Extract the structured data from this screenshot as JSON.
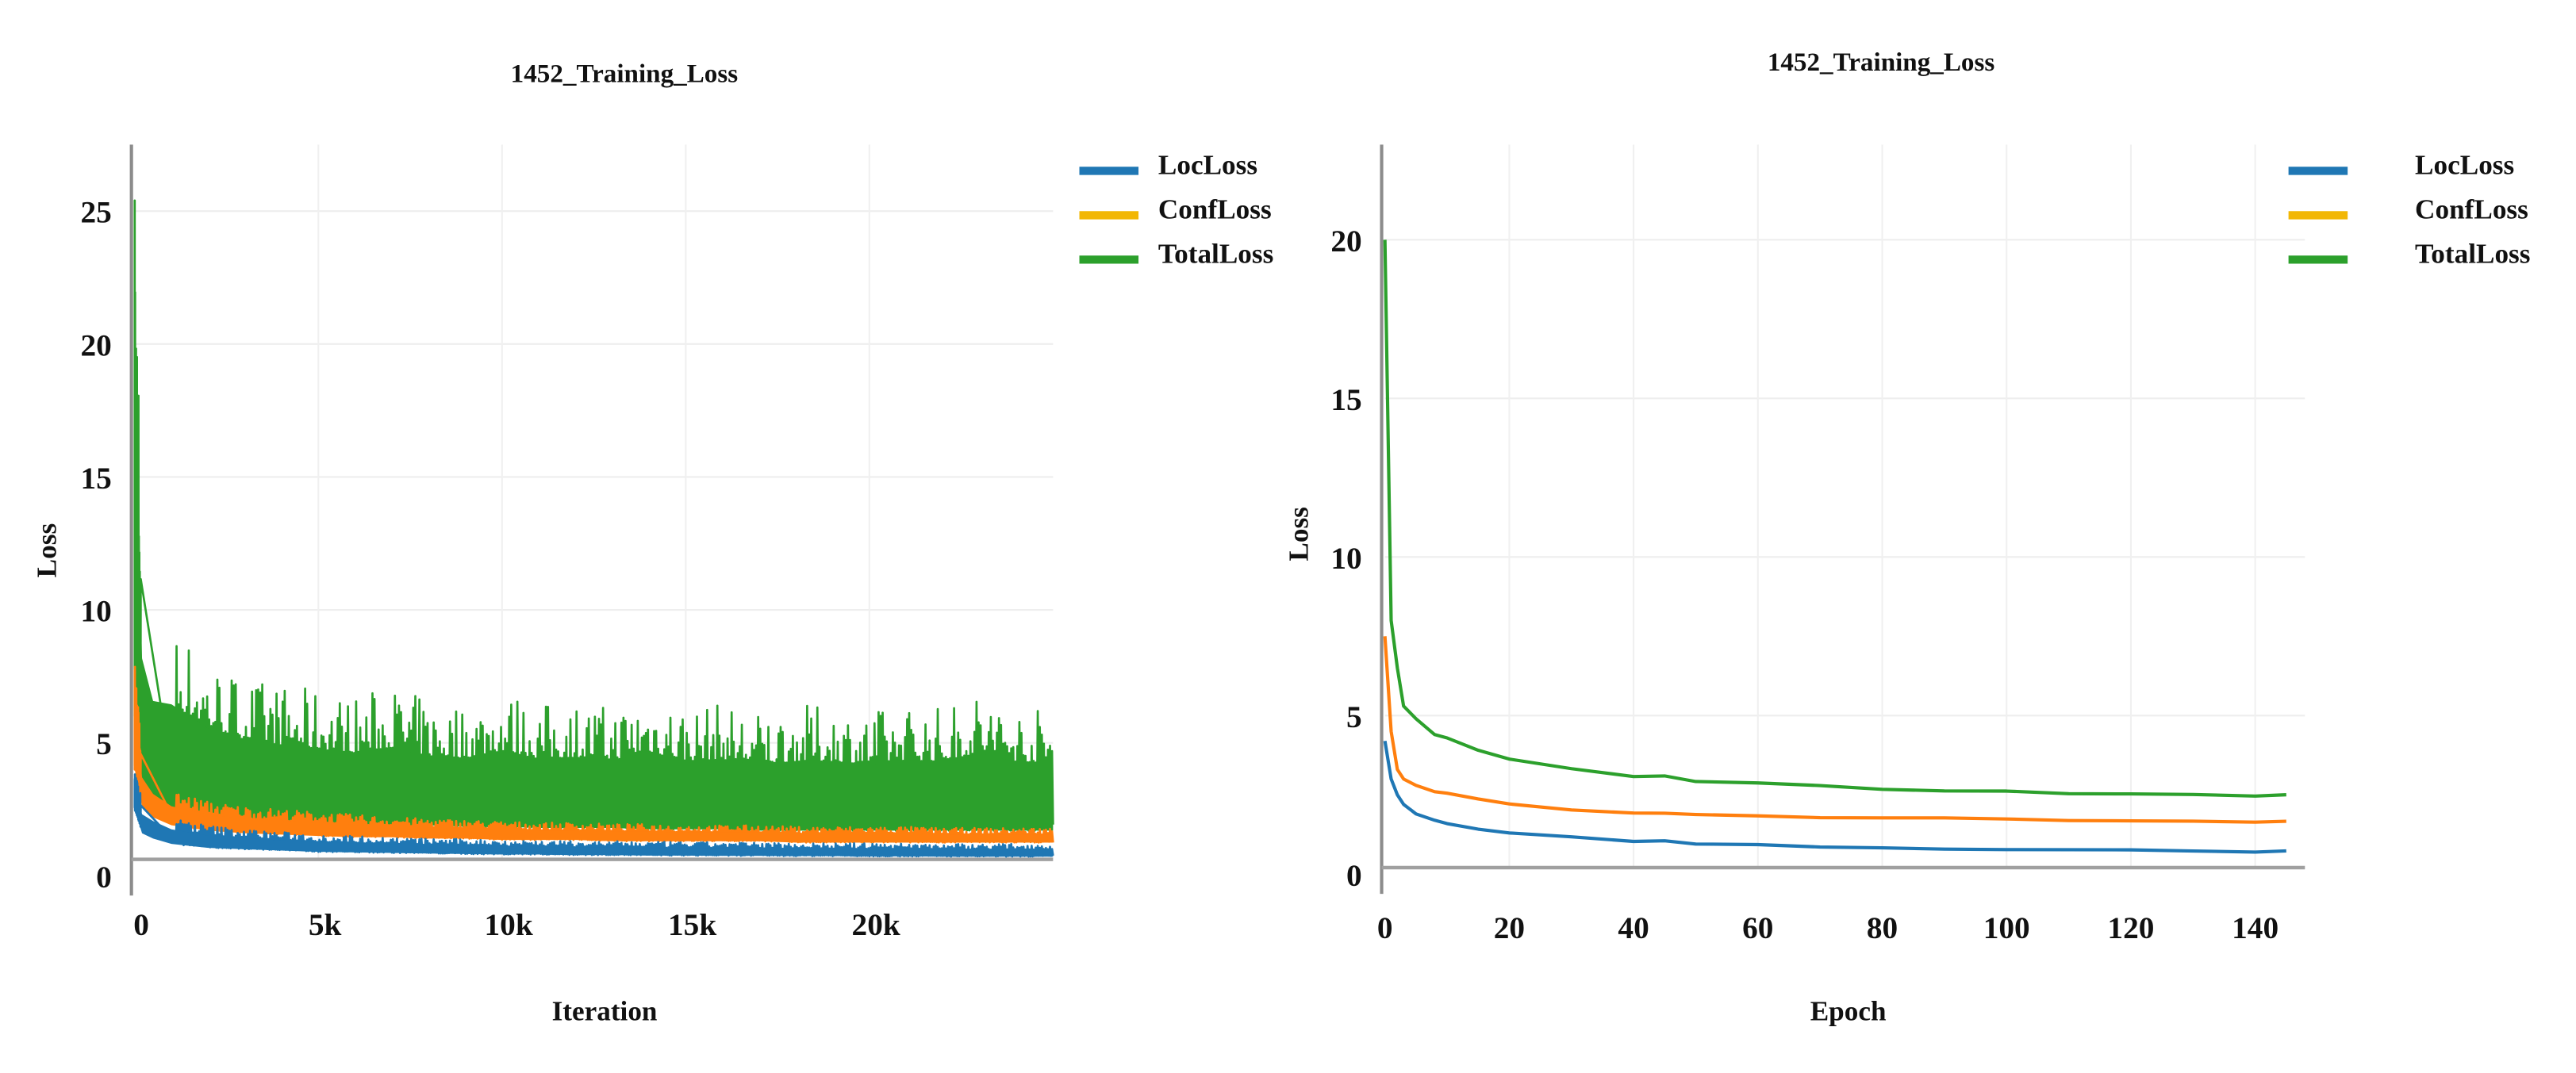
{
  "chart_data": [
    {
      "type": "line",
      "title": "1452_Training_Loss",
      "xlabel": "Iteration",
      "ylabel": "Loss",
      "xlim": [
        0,
        25000
      ],
      "ylim": [
        0,
        27.5
      ],
      "xticks": [
        {
          "v": 0,
          "label": "0"
        },
        {
          "v": 5000,
          "label": "5k"
        },
        {
          "v": 10000,
          "label": "10k"
        },
        {
          "v": 15000,
          "label": "15k"
        },
        {
          "v": 20000,
          "label": "20k"
        }
      ],
      "yticks": [
        {
          "v": 0,
          "label": "0"
        },
        {
          "v": 5,
          "label": "5"
        },
        {
          "v": 10,
          "label": "10"
        },
        {
          "v": 15,
          "label": "15"
        },
        {
          "v": 20,
          "label": "20"
        },
        {
          "v": 25,
          "label": "25"
        }
      ],
      "grid": true,
      "legend_position": "top-right",
      "note": "noisy per-iteration series; values given as lower/upper envelope",
      "x": [
        0,
        200,
        500,
        1000,
        2000,
        3000,
        4000,
        5000,
        6000,
        7000,
        8000,
        9000,
        10000,
        11000,
        12000,
        13000,
        14000,
        15000,
        16000,
        17000,
        18000,
        19000,
        20000,
        21000,
        22000,
        23000,
        24000,
        25000
      ],
      "series": [
        {
          "name": "TotalLoss",
          "color": "#2ca02c",
          "upper": [
            27,
            12,
            9.5,
            9.6,
            8.2,
            7.5,
            7.2,
            7,
            6.8,
            7.2,
            6.6,
            6.5,
            7,
            6.5,
            6.6,
            6.4,
            7,
            6.4,
            6.5,
            6.2,
            6.4,
            6.4,
            6.2,
            6.5,
            6.4,
            7,
            6.4,
            6.3
          ],
          "lower": [
            6,
            3.5,
            3,
            2.6,
            2.3,
            2.2,
            2.1,
            2,
            1.95,
            1.9,
            1.9,
            1.85,
            1.85,
            1.8,
            1.8,
            1.8,
            1.75,
            1.75,
            1.75,
            1.7,
            1.7,
            1.7,
            1.7,
            1.7,
            1.7,
            1.7,
            1.7,
            1.7
          ]
        },
        {
          "name": "ConfLoss",
          "color": "#ff7f0e",
          "upper": [
            8,
            4.6,
            3.8,
            3.2,
            2.8,
            2.6,
            2.5,
            2.4,
            2.3,
            2.2,
            2.15,
            2.1,
            2.05,
            2.0,
            2.0,
            1.95,
            1.95,
            1.9,
            1.9,
            1.9,
            1.85,
            1.85,
            1.85,
            1.85,
            1.8,
            1.8,
            1.8,
            1.8
          ],
          "lower": [
            4,
            2.6,
            2.2,
            1.9,
            1.7,
            1.6,
            1.55,
            1.5,
            1.45,
            1.45,
            1.4,
            1.4,
            1.35,
            1.35,
            1.35,
            1.3,
            1.3,
            1.3,
            1.3,
            1.3,
            1.25,
            1.25,
            1.25,
            1.25,
            1.25,
            1.25,
            1.25,
            1.25
          ]
        },
        {
          "name": "LocLoss",
          "color": "#1f77b4",
          "upper": [
            4,
            2.9,
            2.6,
            2.2,
            1.9,
            1.75,
            1.65,
            1.55,
            1.5,
            1.45,
            1.4,
            1.38,
            1.35,
            1.33,
            1.3,
            1.3,
            1.28,
            1.27,
            1.26,
            1.25,
            1.24,
            1.23,
            1.22,
            1.22,
            1.21,
            1.2,
            1.2,
            1.2
          ],
          "lower": [
            2.5,
            1.6,
            1.4,
            1.2,
            1.05,
            1.0,
            0.95,
            0.9,
            0.88,
            0.86,
            0.84,
            0.82,
            0.8,
            0.8,
            0.78,
            0.78,
            0.76,
            0.76,
            0.75,
            0.75,
            0.74,
            0.74,
            0.73,
            0.73,
            0.72,
            0.72,
            0.72,
            0.72
          ]
        }
      ],
      "legend": [
        "LocLoss",
        "ConfLoss",
        "TotalLoss"
      ]
    },
    {
      "type": "line",
      "title": "1452_Training_Loss",
      "xlabel": "Epoch",
      "ylabel": "Loss",
      "xlim": [
        0,
        148
      ],
      "ylim": [
        0,
        23
      ],
      "xticks": [
        {
          "v": 0,
          "label": "0"
        },
        {
          "v": 20,
          "label": "20"
        },
        {
          "v": 40,
          "label": "40"
        },
        {
          "v": 60,
          "label": "60"
        },
        {
          "v": 80,
          "label": "80"
        },
        {
          "v": 100,
          "label": "100"
        },
        {
          "v": 120,
          "label": "120"
        },
        {
          "v": 140,
          "label": "140"
        }
      ],
      "yticks": [
        {
          "v": 0,
          "label": "0"
        },
        {
          "v": 5,
          "label": "5"
        },
        {
          "v": 10,
          "label": "10"
        },
        {
          "v": 15,
          "label": "15"
        },
        {
          "v": 20,
          "label": "20"
        }
      ],
      "grid": true,
      "legend_position": "top-right",
      "x": [
        0,
        1,
        2,
        3,
        5,
        8,
        10,
        15,
        20,
        30,
        40,
        45,
        50,
        60,
        70,
        80,
        90,
        100,
        110,
        120,
        130,
        140,
        145
      ],
      "series": [
        {
          "name": "TotalLoss",
          "color": "#2ca02c",
          "values": [
            20,
            8,
            6.5,
            5.3,
            4.9,
            4.4,
            4.3,
            3.9,
            3.6,
            3.3,
            3.05,
            3.1,
            2.95,
            2.85,
            2.8,
            2.7,
            2.65,
            2.6,
            2.55,
            2.55,
            2.5,
            2.45,
            2.5
          ]
        },
        {
          "name": "ConfLoss",
          "color": "#ff7f0e",
          "values": [
            7.5,
            4.5,
            3.3,
            3.0,
            2.8,
            2.6,
            2.55,
            2.35,
            2.2,
            2.05,
            1.95,
            1.95,
            1.9,
            1.85,
            1.8,
            1.78,
            1.75,
            1.72,
            1.7,
            1.7,
            1.68,
            1.65,
            1.65
          ]
        },
        {
          "name": "LocLoss",
          "color": "#1f77b4",
          "values": [
            4.2,
            3.0,
            2.5,
            2.2,
            1.9,
            1.7,
            1.6,
            1.4,
            1.3,
            1.15,
            1.05,
            1.05,
            0.98,
            0.93,
            0.88,
            0.83,
            0.8,
            0.78,
            0.76,
            0.74,
            0.72,
            0.7,
            0.72
          ]
        }
      ],
      "legend": [
        "LocLoss",
        "ConfLoss",
        "TotalLoss"
      ]
    }
  ]
}
